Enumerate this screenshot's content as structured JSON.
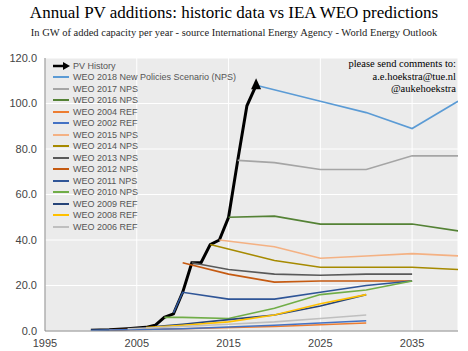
{
  "chart_data": {
    "type": "line",
    "title": "Annual PV additions: historic data vs IEA WEO predictions",
    "subtitle": "In GW of added capacity per year - source International Energy Agency - World Energy Outlook",
    "annotations": [
      "please send comments to:",
      "a.e.hoekstra@tue.nl",
      "@aukehoekstra"
    ],
    "xlim": [
      1995,
      2040
    ],
    "xticks": [
      1995,
      2005,
      2015,
      2025,
      2035
    ],
    "ylim": [
      0,
      120
    ],
    "yticks": [
      {
        "value": 0,
        "label": "0.0"
      },
      {
        "value": 20,
        "label": "20.0"
      },
      {
        "value": 40,
        "label": "40.0"
      },
      {
        "value": 60,
        "label": "60.0"
      },
      {
        "value": 80,
        "label": "80.0"
      },
      {
        "value": 100,
        "label": "100.0"
      },
      {
        "value": 120,
        "label": "120.0"
      }
    ],
    "grid": true,
    "legend": "upper left",
    "series": [
      {
        "name": "PV History",
        "color": "#000000",
        "marker": "arrow",
        "x": [
          2000,
          2002,
          2004,
          2006,
          2007,
          2008,
          2009,
          2010,
          2011,
          2012,
          2013,
          2014,
          2015,
          2016,
          2017,
          2018
        ],
        "values": [
          0.3,
          0.5,
          1,
          1.6,
          2.5,
          6,
          7.5,
          17,
          30,
          30,
          38,
          40,
          50,
          75,
          99,
          108
        ]
      },
      {
        "name": "WEO 2018 New Policies Scenario (NPS)",
        "color": "#5b9bd5",
        "x": [
          2018,
          2025,
          2030,
          2035,
          2040
        ],
        "values": [
          108,
          101,
          96,
          89,
          101
        ]
      },
      {
        "name": "WEO 2017 NPS",
        "color": "#a5a5a5",
        "x": [
          2016,
          2020,
          2025,
          2030,
          2035,
          2040
        ],
        "values": [
          75,
          74,
          71,
          71,
          77,
          77
        ]
      },
      {
        "name": "WEO 2016 NPS",
        "color": "#548235",
        "x": [
          2015,
          2020,
          2025,
          2030,
          2035,
          2040
        ],
        "values": [
          50,
          50.5,
          47,
          47,
          47,
          44
        ]
      },
      {
        "name": "WEO 2004 REF",
        "color": "#ed7d31",
        "x": [
          2002,
          2010,
          2020,
          2030
        ],
        "values": [
          0.5,
          1,
          2,
          3.5
        ]
      },
      {
        "name": "WEO 2002 REF",
        "color": "#4472c4",
        "x": [
          2000,
          2010,
          2020,
          2030
        ],
        "values": [
          0.3,
          1,
          2.5,
          4.5
        ]
      },
      {
        "name": "WEO 2015 NPS",
        "color": "#f4b183",
        "x": [
          2014,
          2020,
          2025,
          2030,
          2035,
          2040
        ],
        "values": [
          40,
          37,
          32,
          33,
          34,
          33
        ]
      },
      {
        "name": "WEO 2014 NPS",
        "color": "#a68a00",
        "x": [
          2013,
          2020,
          2025,
          2030,
          2035,
          2040
        ],
        "values": [
          38,
          31,
          28,
          28,
          28,
          27
        ]
      },
      {
        "name": "WEO 2013 NPS",
        "color": "#595959",
        "x": [
          2011,
          2015,
          2020,
          2025,
          2030,
          2035
        ],
        "values": [
          30,
          27,
          25,
          24.5,
          25,
          25
        ]
      },
      {
        "name": "WEO 2012 NPS",
        "color": "#c55a11",
        "x": [
          2010,
          2015,
          2020,
          2025,
          2030,
          2035
        ],
        "values": [
          30,
          25,
          21.5,
          22,
          22,
          22
        ]
      },
      {
        "name": "WEO 2011 NPS",
        "color": "#2f5597",
        "x": [
          2009,
          2010,
          2015,
          2020,
          2025,
          2030,
          2035
        ],
        "values": [
          8,
          17,
          14,
          14,
          17,
          20,
          22
        ]
      },
      {
        "name": "WEO 2010 NPS",
        "color": "#70ad47",
        "x": [
          2008,
          2010,
          2015,
          2020,
          2025,
          2030,
          2035
        ],
        "values": [
          6,
          6,
          5.5,
          10,
          16,
          18,
          22
        ]
      },
      {
        "name": "WEO 2009 REF",
        "color": "#264478",
        "x": [
          2007,
          2010,
          2015,
          2020,
          2025,
          2030
        ],
        "values": [
          2,
          3,
          5,
          7,
          11,
          16
        ]
      },
      {
        "name": "WEO 2008 REF",
        "color": "#ffc000",
        "x": [
          2006,
          2010,
          2015,
          2020,
          2025,
          2030
        ],
        "values": [
          1.5,
          2.5,
          4,
          7,
          12,
          16
        ]
      },
      {
        "name": "WEO 2006 REF",
        "color": "#bfbfbf",
        "x": [
          2004,
          2010,
          2015,
          2020,
          2025,
          2030
        ],
        "values": [
          1,
          2,
          3,
          4,
          5.5,
          7
        ]
      }
    ]
  }
}
